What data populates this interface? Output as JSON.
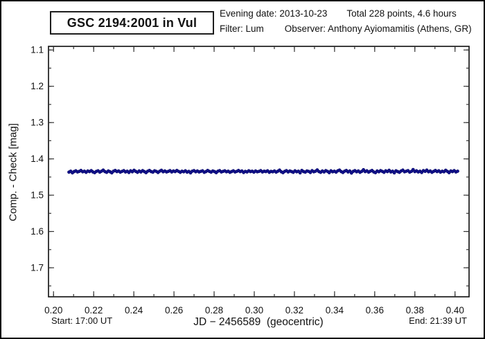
{
  "page": {
    "background": "#ffffff",
    "border_color": "#000000"
  },
  "header": {
    "title": "GSC 2194:2001 in Vul",
    "evening_date_label": "Evening date: 2013-10-23",
    "total_label": "Total 228 points, 4.6 hours",
    "filter_label": "Filter: Lum",
    "observer_label": "Observer: Anthony Ayiomamitis (Athens, GR)"
  },
  "footer": {
    "start_label": "Start: 17:00 UT",
    "end_label": "End: 21:39 UT"
  },
  "chart_data": {
    "type": "scatter",
    "title": "GSC 2194:2001 in Vul",
    "xlabel": "JD − 2456589  (geocentric)",
    "ylabel": "Comp. - Check [mag]",
    "axis_color": "#1a1a1a",
    "tick_color": "#333333",
    "grid": false,
    "x_axis": {
      "lim": [
        0.1975,
        0.407
      ],
      "major_ticks": [
        0.2,
        0.22,
        0.24,
        0.26,
        0.28,
        0.3,
        0.32,
        0.34,
        0.36,
        0.38,
        0.4
      ],
      "major_labels": [
        "0.20",
        "0.22",
        "0.24",
        "0.26",
        "0.28",
        "0.30",
        "0.32",
        "0.34",
        "0.36",
        "0.38",
        "0.40"
      ],
      "minor_step": 0.01
    },
    "y_axis": {
      "lim": [
        1.09,
        1.78
      ],
      "inverted": true,
      "major_ticks": [
        1.1,
        1.2,
        1.3,
        1.4,
        1.5,
        1.6,
        1.7
      ],
      "major_labels": [
        "1.1",
        "1.2",
        "1.3",
        "1.4",
        "1.5",
        "1.6",
        "1.7"
      ],
      "minor_step": 0.05
    },
    "marker": {
      "shape": "circle",
      "color": "#12128e",
      "edge_color": "#000060",
      "radius_px": 2.1
    },
    "series": [
      {
        "name": "Comp - Check",
        "points_count": 228,
        "x_start": 0.2077,
        "x_end": 0.4013,
        "y": [
          1.4365,
          1.434,
          1.4385,
          1.435,
          1.433,
          1.436,
          1.4345,
          1.432,
          1.4355,
          1.434,
          1.437,
          1.4335,
          1.435,
          1.4325,
          1.436,
          1.438,
          1.4345,
          1.433,
          1.4365,
          1.434,
          1.431,
          1.435,
          1.437,
          1.4335,
          1.4355,
          1.4385,
          1.434,
          1.432,
          1.435,
          1.4335,
          1.4365,
          1.4345,
          1.4325,
          1.436,
          1.434,
          1.4375,
          1.433,
          1.4355,
          1.4315,
          1.4345,
          1.437,
          1.4335,
          1.436,
          1.4325,
          1.435,
          1.438,
          1.434,
          1.432,
          1.435,
          1.4365,
          1.433,
          1.4345,
          1.4375,
          1.434,
          1.4315,
          1.4355,
          1.4335,
          1.436,
          1.4345,
          1.4325,
          1.436,
          1.4335,
          1.435,
          1.432,
          1.4345,
          1.437,
          1.434,
          1.4355,
          1.433,
          1.4365,
          1.4345,
          1.4385,
          1.434,
          1.4325,
          1.4355,
          1.4335,
          1.436,
          1.4345,
          1.433,
          1.437,
          1.435,
          1.432,
          1.4345,
          1.4365,
          1.4335,
          1.435,
          1.438,
          1.434,
          1.4325,
          1.436,
          1.4345,
          1.433,
          1.4355,
          1.434,
          1.437,
          1.435,
          1.433,
          1.436,
          1.4345,
          1.432,
          1.435,
          1.4335,
          1.4375,
          1.4345,
          1.436,
          1.433,
          1.435,
          1.434,
          1.4365,
          1.4335,
          1.4355,
          1.4345,
          1.4325,
          1.436,
          1.434,
          1.435,
          1.433,
          1.437,
          1.4345,
          1.4355,
          1.4335,
          1.4365,
          1.434,
          1.431,
          1.4355,
          1.438,
          1.4345,
          1.4325,
          1.436,
          1.4335,
          1.435,
          1.437,
          1.433,
          1.4355,
          1.434,
          1.4385,
          1.432,
          1.435,
          1.4365,
          1.4335,
          1.4345,
          1.4375,
          1.4325,
          1.4355,
          1.434,
          1.4305,
          1.435,
          1.437,
          1.4335,
          1.436,
          1.4325,
          1.4345,
          1.438,
          1.433,
          1.4355,
          1.434,
          1.4365,
          1.433,
          1.431,
          1.435,
          1.4375,
          1.434,
          1.432,
          1.436,
          1.4335,
          1.439,
          1.4345,
          1.4325,
          1.4355,
          1.4335,
          1.437,
          1.4345,
          1.43,
          1.435,
          1.433,
          1.4365,
          1.434,
          1.432,
          1.436,
          1.438,
          1.4335,
          1.4355,
          1.4325,
          1.4345,
          1.437,
          1.433,
          1.435,
          1.4315,
          1.436,
          1.434,
          1.4385,
          1.433,
          1.435,
          1.437,
          1.4335,
          1.431,
          1.4355,
          1.434,
          1.4325,
          1.4365,
          1.4345,
          1.4295,
          1.435,
          1.433,
          1.436,
          1.434,
          1.4375,
          1.4325,
          1.4345,
          1.431,
          1.4355,
          1.4335,
          1.437,
          1.4345,
          1.432,
          1.435,
          1.433,
          1.4365,
          1.434,
          1.4355,
          1.4315,
          1.4345,
          1.438,
          1.4335,
          1.435,
          1.4325,
          1.436,
          1.434
        ]
      }
    ]
  }
}
